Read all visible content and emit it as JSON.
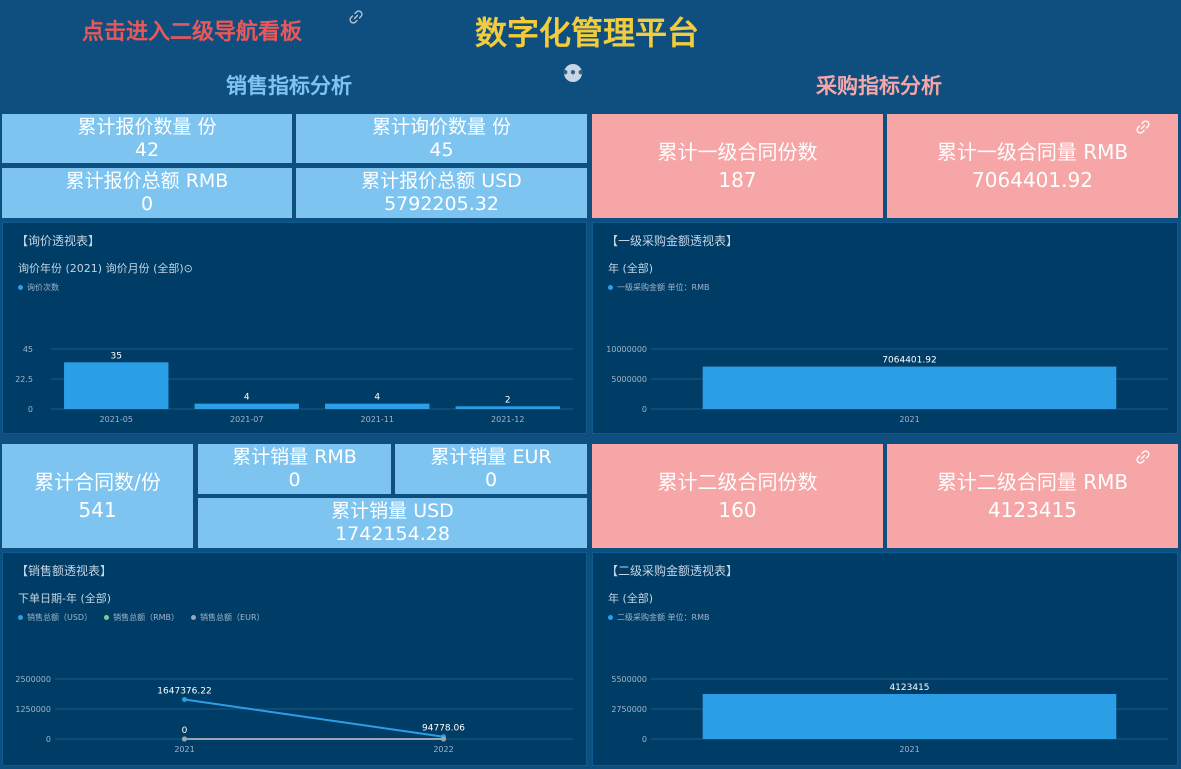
{
  "header": {
    "nav_link": "点击进入二级导航看板",
    "title": "数字化管理平台",
    "more_icon": "more-horizontal-icon",
    "link_icon": "link-icon"
  },
  "sections": {
    "sales": "销售指标分析",
    "purchase": "采购指标分析"
  },
  "colors": {
    "background": "#0e4f80",
    "panel": "#003d66",
    "sales_tile": "#7ec4f0",
    "purchase_tile": "#f6a6a6",
    "bar": "#2a9fe6",
    "title": "#f2cc3c",
    "nav": "#e8585a"
  },
  "kpis": {
    "quote_count": {
      "label": "累计报价数量 份",
      "value": "42"
    },
    "inquiry_count": {
      "label": "累计询价数量 份",
      "value": "45"
    },
    "quote_rmb": {
      "label": "累计报价总额 RMB",
      "value": "0"
    },
    "quote_usd": {
      "label": "累计报价总额 USD",
      "value": "5792205.32"
    },
    "l1_contracts": {
      "label": "累计一级合同份数",
      "value": "187"
    },
    "l1_amount": {
      "label": "累计一级合同量 RMB",
      "value": "7064401.92"
    },
    "contracts": {
      "label": "累计合同数/份",
      "value": "541"
    },
    "sales_rmb": {
      "label": "累计销量 RMB",
      "value": "0"
    },
    "sales_eur": {
      "label": "累计销量 EUR",
      "value": "0"
    },
    "sales_usd": {
      "label": "累计销量 USD",
      "value": "1742154.28"
    },
    "l2_contracts": {
      "label": "累计二级合同份数",
      "value": "160"
    },
    "l2_amount": {
      "label": "累计二级合同量 RMB",
      "value": "4123415"
    }
  },
  "panels": {
    "inquiry": {
      "title": "【询价透视表】",
      "filter": "询价年份 (2021)   询价月份 (全部)⊙",
      "legend": [
        "询价次数"
      ]
    },
    "l1_purchase": {
      "title": "【一级采购金额透视表】",
      "filter": "年 (全部)",
      "legend": [
        "一级采购金额 单位：RMB"
      ]
    },
    "sales": {
      "title": "【销售额透视表】",
      "filter": "下单日期-年 (全部)",
      "legend": [
        "销售总额（USD）",
        "销售总额（RMB）",
        "销售总额（EUR）"
      ]
    },
    "l2_purchase": {
      "title": "【二级采购金额透视表】",
      "filter": "年 (全部)",
      "legend": [
        "二级采购金额 单位：RMB"
      ]
    }
  },
  "chart_data": [
    {
      "id": "inquiry",
      "type": "bar",
      "categories": [
        "2021-05",
        "2021-07",
        "2021-11",
        "2021-12"
      ],
      "series": [
        {
          "name": "询价次数",
          "values": [
            35,
            4,
            4,
            2
          ],
          "color": "#2a9fe6"
        }
      ],
      "yticks": [
        "0",
        "22.5",
        "45"
      ],
      "ylim": [
        0,
        45
      ]
    },
    {
      "id": "l1_purchase",
      "type": "bar",
      "categories": [
        "2021"
      ],
      "series": [
        {
          "name": "一级采购金额 单位：RMB",
          "values": [
            7064401.92
          ],
          "color": "#2a9fe6"
        }
      ],
      "labels": [
        "7064401.92"
      ],
      "yticks": [
        "0",
        "5000000",
        "10000000"
      ],
      "ylim": [
        0,
        10000000
      ]
    },
    {
      "id": "sales",
      "type": "line",
      "categories": [
        "2021",
        "2022"
      ],
      "series": [
        {
          "name": "销售总额（USD）",
          "values": [
            1647376.22,
            94778.06
          ],
          "color": "#2a9fe6",
          "labels": [
            "1647376.22",
            "94778.06"
          ]
        },
        {
          "name": "销售总额（RMB）",
          "values": [
            0,
            0
          ],
          "color": "#6fd39a",
          "labels": [
            "0",
            ""
          ]
        },
        {
          "name": "销售总额（EUR）",
          "values": [
            0,
            0
          ],
          "color": "#9aa7b3",
          "labels": [
            "",
            ""
          ]
        }
      ],
      "yticks": [
        "0",
        "1250000",
        "2500000"
      ],
      "ylim": [
        0,
        2500000
      ]
    },
    {
      "id": "l2_purchase",
      "type": "bar",
      "categories": [
        "2021"
      ],
      "series": [
        {
          "name": "二级采购金额 单位：RMB",
          "values": [
            4123415
          ],
          "color": "#2a9fe6"
        }
      ],
      "labels": [
        "4123415"
      ],
      "yticks": [
        "0",
        "2750000",
        "5500000"
      ],
      "ylim": [
        0,
        5500000
      ]
    }
  ]
}
